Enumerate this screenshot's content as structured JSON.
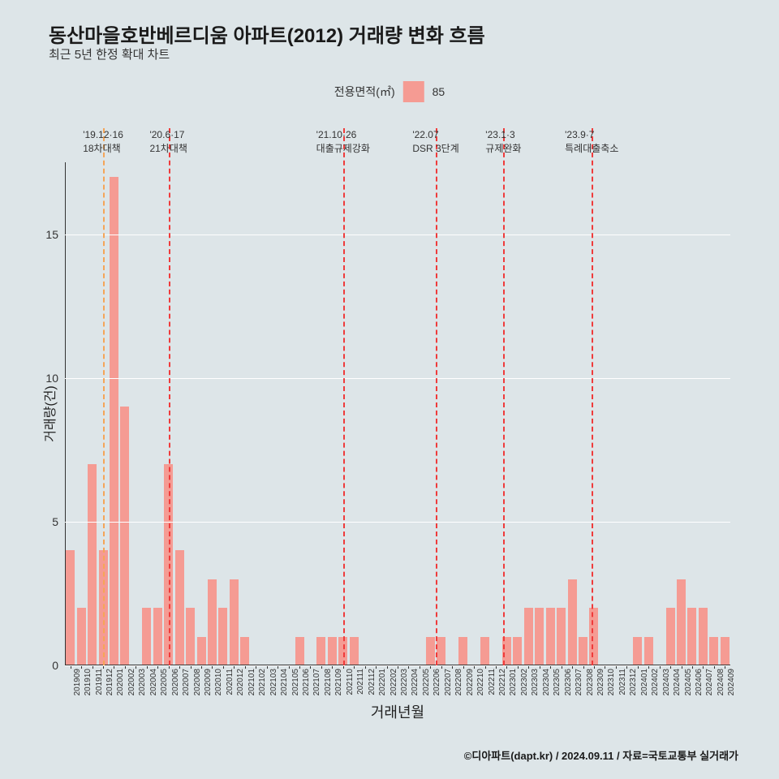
{
  "title": "동산마을호반베르디움 아파트(2012) 거래량 변화 흐름",
  "subtitle": "최근 5년 한정 확대 차트",
  "legend": {
    "label": "전용면적(㎡)",
    "series": "85",
    "color": "#f59b93"
  },
  "y_axis": {
    "label": "거래량(건)",
    "ticks": [
      0,
      5,
      10,
      15
    ],
    "max": 17.5
  },
  "x_axis": {
    "label": "거래년월"
  },
  "background_color": "#dde5e8",
  "grid_color": "#ffffff",
  "bar_color": "#f59b93",
  "categories": [
    "201909",
    "201910",
    "201911",
    "201912",
    "202001",
    "202002",
    "202003",
    "202004",
    "202005",
    "202006",
    "202007",
    "202008",
    "202009",
    "202010",
    "202011",
    "202012",
    "202101",
    "202102",
    "202103",
    "202104",
    "202105",
    "202106",
    "202107",
    "202108",
    "202109",
    "202110",
    "202111",
    "202112",
    "202201",
    "202202",
    "202203",
    "202204",
    "202205",
    "202206",
    "202207",
    "202208",
    "202209",
    "202210",
    "202211",
    "202212",
    "202301",
    "202302",
    "202303",
    "202304",
    "202305",
    "202306",
    "202307",
    "202308",
    "202309",
    "202310",
    "202311",
    "202312",
    "202401",
    "202402",
    "202403",
    "202404",
    "202405",
    "202406",
    "202407",
    "202408",
    "202409"
  ],
  "values": [
    4,
    2,
    7,
    4,
    17,
    9,
    0,
    2,
    2,
    7,
    4,
    2,
    1,
    3,
    2,
    3,
    1,
    0,
    0,
    0,
    0,
    1,
    0,
    1,
    1,
    1,
    1,
    0,
    0,
    0,
    0,
    0,
    0,
    1,
    1,
    0,
    1,
    0,
    1,
    0,
    1,
    1,
    2,
    2,
    2,
    2,
    3,
    1,
    2,
    0,
    0,
    0,
    1,
    1,
    0,
    2,
    3,
    2,
    2,
    1,
    1
  ],
  "vlines": [
    {
      "idx": 3.5,
      "color": "#f5a558",
      "label1": "'19.12·16",
      "label2": "18차대책"
    },
    {
      "idx": 9.5,
      "color": "#ef3b3b",
      "label1": "'20.6·17",
      "label2": "21차대책"
    },
    {
      "idx": 25.5,
      "color": "#ef3b3b",
      "label1": "'21.10·26",
      "label2": "대출규제강화"
    },
    {
      "idx": 34,
      "color": "#ef3b3b",
      "label1": "'22.07",
      "label2": "DSR 3단계"
    },
    {
      "idx": 40.2,
      "color": "#ef3b3b",
      "label1": "'23.1·3",
      "label2": "규제완화"
    },
    {
      "idx": 48.3,
      "color": "#ef3b3b",
      "label1": "'23.9·7",
      "label2": "특례대출축소"
    }
  ],
  "credit": "©디아파트(dapt.kr) / 2024.09.11 / 자료=국토교통부 실거래가"
}
